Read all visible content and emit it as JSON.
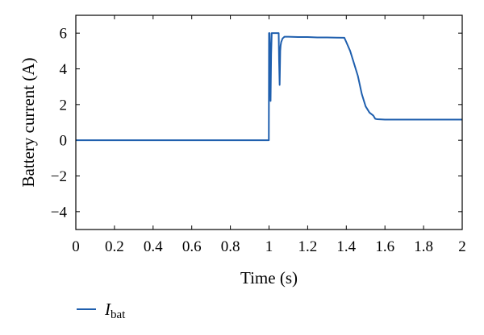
{
  "chart_data": {
    "type": "line",
    "title": "",
    "xlabel": "Time (s)",
    "ylabel": "Battery current (A)",
    "xlim": [
      0,
      2
    ],
    "ylim": [
      -5,
      7
    ],
    "xticks": [
      0,
      0.2,
      0.4,
      0.6,
      0.8,
      1,
      1.2,
      1.4,
      1.6,
      1.8,
      2
    ],
    "xtick_labels": [
      "0",
      "0.2",
      "0.4",
      "0.6",
      "0.8",
      "1",
      "1.2",
      "1.4",
      "1.6",
      "1.8",
      "2"
    ],
    "yticks": [
      -4,
      -2,
      0,
      2,
      4,
      6
    ],
    "ytick_labels": [
      "−4",
      "−2",
      "0",
      "2",
      "4",
      "6"
    ],
    "grid": false,
    "legend_position": "bottom-left",
    "color": "#1f5fae",
    "series": [
      {
        "name": "I",
        "name_subscript": "bat",
        "x": [
          0,
          0.2,
          0.4,
          0.6,
          0.8,
          0.999,
          1.0,
          1.003,
          1.006,
          1.008,
          1.011,
          1.014,
          1.016,
          1.019,
          1.047,
          1.05,
          1.052,
          1.055,
          1.058,
          1.06,
          1.063,
          1.07,
          1.08,
          1.1,
          1.15,
          1.2,
          1.25,
          1.3,
          1.35,
          1.39,
          1.4,
          1.42,
          1.44,
          1.46,
          1.48,
          1.5,
          1.52,
          1.54,
          1.55,
          1.56,
          1.6,
          1.7,
          1.8,
          1.9,
          2.0
        ],
        "y": [
          0,
          0,
          0,
          0,
          0,
          0,
          6.0,
          6.0,
          4.5,
          2.2,
          4.8,
          6.0,
          6.0,
          6.0,
          6.0,
          6.0,
          4.5,
          3.1,
          5.0,
          5.3,
          5.5,
          5.7,
          5.8,
          5.8,
          5.78,
          5.78,
          5.76,
          5.76,
          5.75,
          5.74,
          5.5,
          5.0,
          4.3,
          3.6,
          2.6,
          1.9,
          1.55,
          1.38,
          1.2,
          1.18,
          1.16,
          1.16,
          1.16,
          1.16,
          1.16
        ]
      }
    ]
  }
}
